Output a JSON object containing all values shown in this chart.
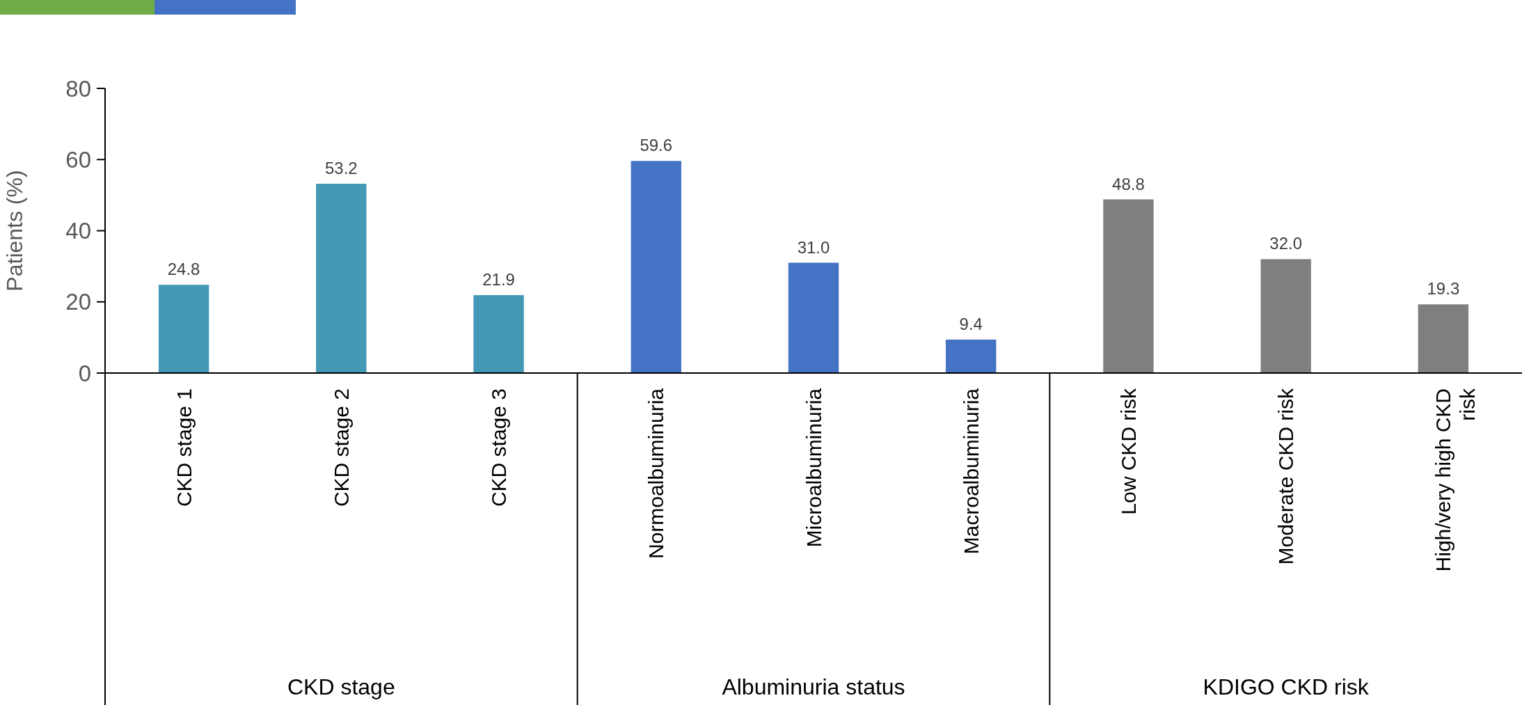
{
  "chart_data": {
    "type": "bar",
    "ylabel": "Patients (%)",
    "categories": [
      "CKD stage 1",
      "CKD stage 2",
      "CKD stage 3",
      "Normoalbuminuria",
      "Microalbuminuria",
      "Macroalbuminuria",
      "Low CKD risk",
      "Moderate CKD risk",
      "High/very high CKD risk"
    ],
    "values": [
      24.8,
      53.2,
      21.9,
      59.6,
      31.0,
      9.4,
      48.8,
      32.0,
      19.3
    ],
    "colors": [
      "#4399b6",
      "#4399b6",
      "#4399b6",
      "#4472c4",
      "#4472c4",
      "#4472c4",
      "#7f7f7f",
      "#7f7f7f",
      "#7f7f7f"
    ],
    "value_labels": [
      "24.8",
      "53.2",
      "21.9",
      "59.6",
      "31.0",
      "9.4",
      "48.8",
      "32.0",
      "19.3"
    ],
    "ylim": [
      0,
      80
    ],
    "yticks": [
      0,
      20,
      40,
      60,
      80
    ],
    "grid": false,
    "annotations": [
      "CKD stage",
      "Albuminuria status",
      "KDIGO CKD risk"
    ]
  }
}
